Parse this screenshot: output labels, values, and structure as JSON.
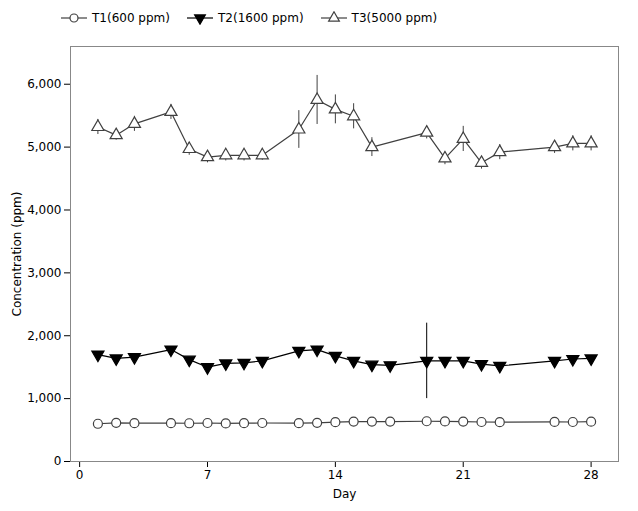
{
  "chart_data": {
    "type": "line",
    "xlabel": "Day",
    "ylabel": "Concentration (ppm)",
    "xlim": [
      -0.5,
      29.5
    ],
    "ylim": [
      0,
      6600
    ],
    "xticks": [
      0,
      7,
      14,
      21,
      28
    ],
    "yticks": [
      0,
      1000,
      2000,
      3000,
      4000,
      5000,
      6000
    ],
    "legend": "upper left",
    "series": [
      {
        "name": "T1(600 ppm)",
        "color": "#404040",
        "marker": "open circle",
        "x": [
          1,
          2,
          3,
          5,
          6,
          7,
          8,
          9,
          10,
          12,
          13,
          14,
          15,
          16,
          17,
          19,
          20,
          21,
          22,
          23,
          26,
          27,
          28
        ],
        "values": [
          600,
          615,
          610,
          610,
          608,
          612,
          605,
          610,
          612,
          610,
          615,
          625,
          635,
          635,
          635,
          640,
          638,
          635,
          628,
          625,
          630,
          628,
          633
        ]
      },
      {
        "name": "T2(1600 ppm)",
        "color": "#000000",
        "marker": "filled triangle-down",
        "x": [
          1,
          2,
          3,
          5,
          6,
          7,
          8,
          9,
          10,
          12,
          13,
          14,
          15,
          16,
          17,
          19,
          20,
          21,
          22,
          23,
          26,
          27,
          28
        ],
        "values": [
          1700,
          1640,
          1660,
          1780,
          1620,
          1500,
          1560,
          1570,
          1600,
          1760,
          1780,
          1680,
          1600,
          1540,
          1530,
          1600,
          1600,
          1600,
          1550,
          1520,
          1600,
          1630,
          1640
        ],
        "yerr": [
          30,
          25,
          25,
          30,
          30,
          30,
          25,
          30,
          25,
          40,
          50,
          30,
          25,
          25,
          30,
          600,
          30,
          30,
          25,
          25,
          30,
          25,
          25
        ]
      },
      {
        "name": "T3(5000 ppm)",
        "color": "#404040",
        "marker": "open triangle-up",
        "x": [
          1,
          2,
          3,
          5,
          6,
          7,
          8,
          9,
          10,
          12,
          13,
          14,
          15,
          16,
          19,
          20,
          21,
          22,
          23,
          26,
          27,
          28
        ],
        "values": [
          5320,
          5190,
          5370,
          5560,
          4970,
          4840,
          4870,
          4870,
          4870,
          5280,
          5750,
          5600,
          5490,
          5000,
          5230,
          4820,
          5130,
          4750,
          4920,
          5000,
          5060,
          5060
        ],
        "yerr": [
          120,
          80,
          120,
          120,
          100,
          90,
          90,
          90,
          80,
          300,
          390,
          230,
          200,
          150,
          100,
          100,
          200,
          100,
          120,
          100,
          120,
          120
        ]
      }
    ]
  }
}
